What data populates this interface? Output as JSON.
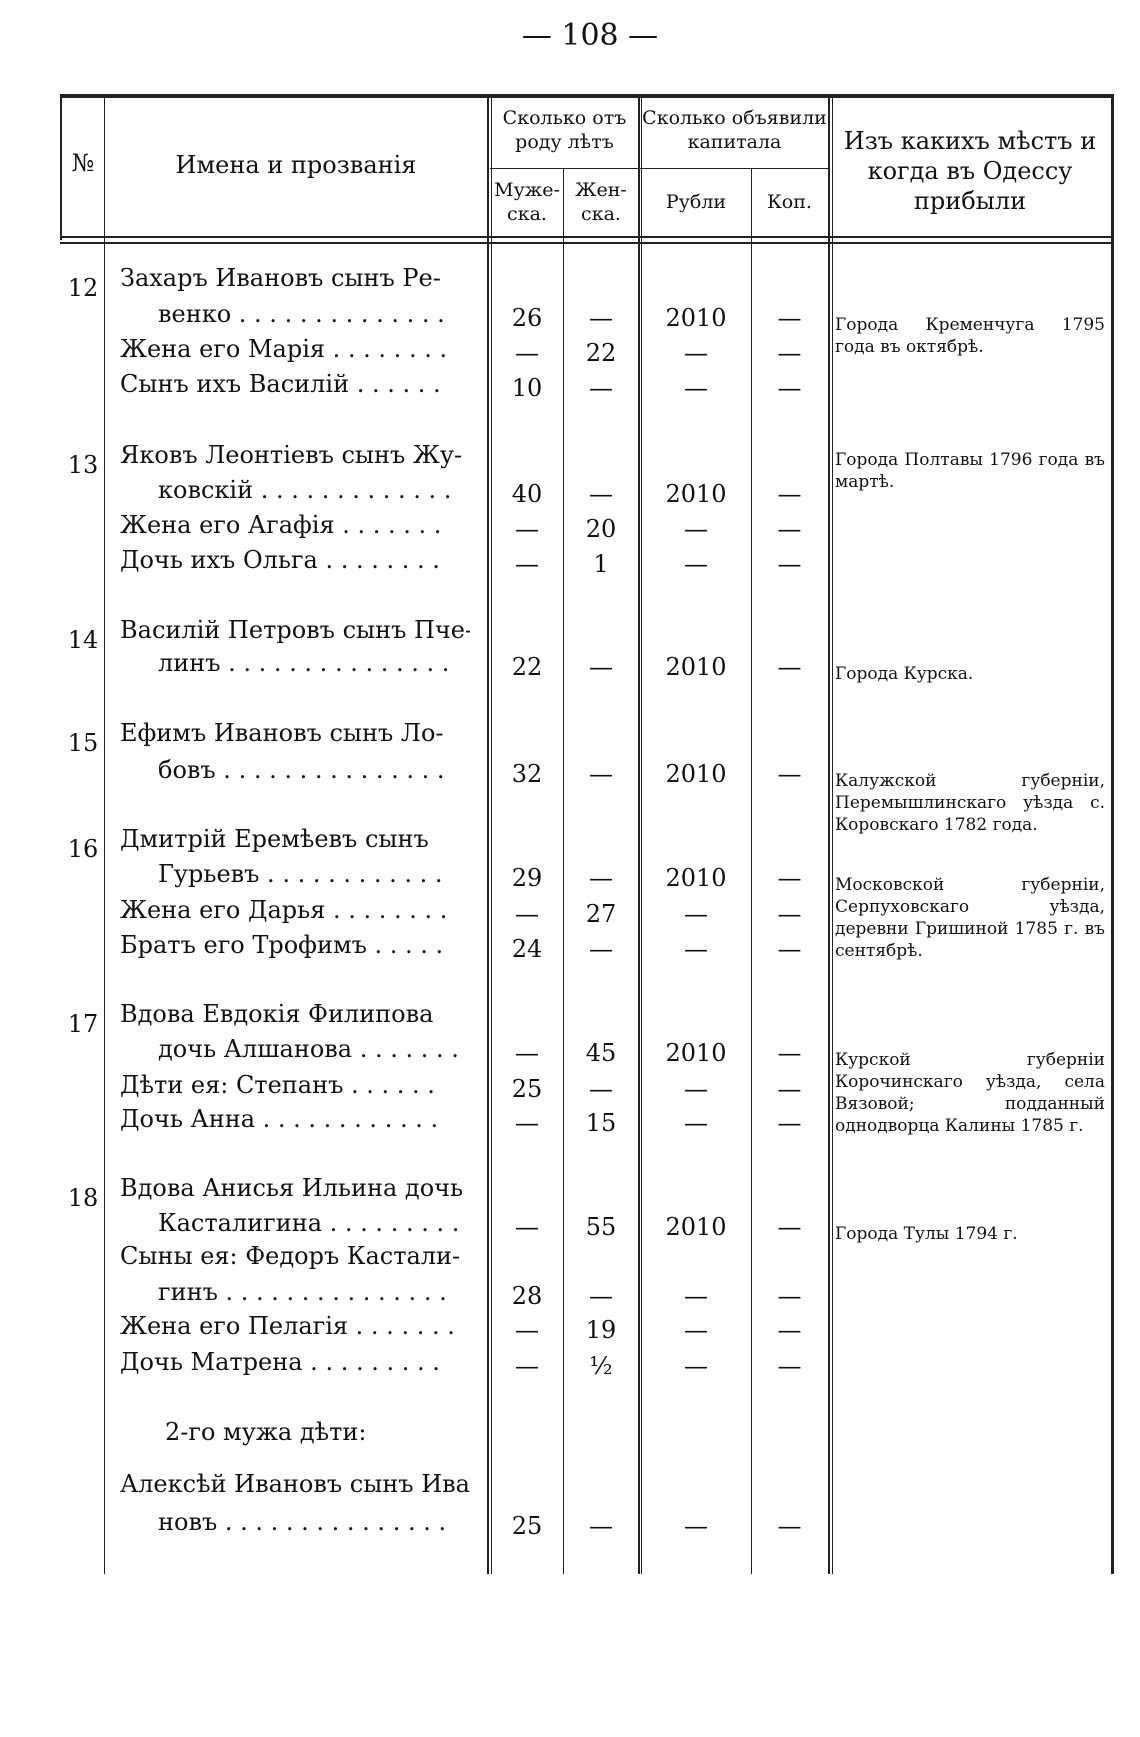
{
  "page_number": "— 108 —",
  "header": {
    "no": "№",
    "names": "Имена и прозванія",
    "age": "Сколько отъ роду лѣтъ",
    "age_male": "Муже-ска.",
    "age_female": "Жен-ска.",
    "capital": "Сколько объявили капитала",
    "rubles": "Рубли",
    "kopecks": "Коп.",
    "origin": "Изъ какихъ мѣстъ и когда въ Одессу прибыли"
  },
  "entries": [
    {
      "no": "12",
      "place": "Города Кременчуга 1795 года въ октябрѣ.",
      "lines": [
        {
          "name": "Захаръ Ивановъ сынъ Ре-",
          "m": "",
          "f": "",
          "r": "",
          "k": ""
        },
        {
          "name": "венко . . . . . . . . . . . . . .",
          "m": "26",
          "f": "—",
          "r": "2010",
          "k": "—",
          "indent": true
        },
        {
          "name": "Жена его Марія . . . . . . . .",
          "m": "—",
          "f": "22",
          "r": "—",
          "k": "—"
        },
        {
          "name": "Сынъ ихъ Василій . . . . . .",
          "m": "10",
          "f": "—",
          "r": "—",
          "k": "—"
        }
      ]
    },
    {
      "no": "13",
      "place": "Города Полтавы 1796 года въ мартѣ.",
      "lines": [
        {
          "name": "Яковъ Леонтіевъ сынъ Жу-",
          "m": "",
          "f": "",
          "r": "",
          "k": ""
        },
        {
          "name": "ковскій . . . . . . . . . . . . .",
          "m": "40",
          "f": "—",
          "r": "2010",
          "k": "—",
          "indent": true
        },
        {
          "name": "Жена его Агафія . . . . . . .",
          "m": "—",
          "f": "20",
          "r": "—",
          "k": "—"
        },
        {
          "name": "Дочь ихъ Ольга . . . . . . . .",
          "m": "—",
          "f": "1",
          "r": "—",
          "k": "—"
        }
      ]
    },
    {
      "no": "14",
      "place": "Города Курска.",
      "lines": [
        {
          "name": "Василій Петровъ сынъ Пче-",
          "m": "",
          "f": "",
          "r": "",
          "k": ""
        },
        {
          "name": "линъ . . . . . . . . . . . . . . .",
          "m": "22",
          "f": "—",
          "r": "2010",
          "k": "—",
          "indent": true
        }
      ]
    },
    {
      "no": "15",
      "place": "Калужской губерніи, Перемышлинскаго уѣзда с. Коровскаго 1782 года.",
      "lines": [
        {
          "name": "Ефимъ Ивановъ сынъ Ло-",
          "m": "",
          "f": "",
          "r": "",
          "k": ""
        },
        {
          "name": "бовъ . . . . . . . . . . . . . . .",
          "m": "32",
          "f": "—",
          "r": "2010",
          "k": "—",
          "indent": true
        }
      ]
    },
    {
      "no": "16",
      "place": "Московской губерніи, Серпуховскаго уѣзда, деревни Гришиной 1785 г. въ сентябрѣ.",
      "lines": [
        {
          "name": "Дмитрій Еремѣевъ сынъ",
          "m": "",
          "f": "",
          "r": "",
          "k": ""
        },
        {
          "name": "Гурьевъ . . . . . . . . . . . .",
          "m": "29",
          "f": "—",
          "r": "2010",
          "k": "—",
          "indent": true
        },
        {
          "name": "Жена его Дарья . . . . . . . .",
          "m": "—",
          "f": "27",
          "r": "—",
          "k": "—"
        },
        {
          "name": "Братъ его Трофимъ . . . . .",
          "m": "24",
          "f": "—",
          "r": "—",
          "k": "—"
        }
      ]
    },
    {
      "no": "17",
      "place": "Курской губерніи Корочинскаго уѣзда, села Вязовой; подданный однодворца Калины 1785 г.",
      "lines": [
        {
          "name": "Вдова Евдокія Филипова",
          "m": "",
          "f": "",
          "r": "",
          "k": ""
        },
        {
          "name": "дочь Алшанова . . . . . . .",
          "m": "—",
          "f": "45",
          "r": "2010",
          "k": "—",
          "indent": true
        },
        {
          "name": "Дѣти ея: Степанъ . . . . . .",
          "m": "25",
          "f": "—",
          "r": "—",
          "k": "—"
        },
        {
          "name": "Дочь Анна . . . . . . . . . . . .",
          "m": "—",
          "f": "15",
          "r": "—",
          "k": "—"
        }
      ]
    },
    {
      "no": "18",
      "place": "Города Тулы 1794 г.",
      "lines": [
        {
          "name": "Вдова Анисья Ильина дочь",
          "m": "",
          "f": "",
          "r": "",
          "k": ""
        },
        {
          "name": "Касталигина . . . . . . . . .",
          "m": "—",
          "f": "55",
          "r": "2010",
          "k": "—",
          "indent": true
        },
        {
          "name": "Сыны ея: Федоръ Кастали-",
          "m": "",
          "f": "",
          "r": "",
          "k": ""
        },
        {
          "name": "гинъ . . . . . . . . . . . . . . .",
          "m": "28",
          "f": "—",
          "r": "—",
          "k": "—",
          "indent": true
        },
        {
          "name": "Жена его Пелагія . . . . . . .",
          "m": "—",
          "f": "19",
          "r": "—",
          "k": "—"
        },
        {
          "name": "Дочь Матрена . . . . . . . . .",
          "m": "—",
          "f": "½",
          "r": "—",
          "k": "—"
        },
        {
          "name": "2-го мужа дѣти:",
          "m": "",
          "f": "",
          "r": "",
          "k": "",
          "sub": true
        },
        {
          "name": "Алексѣй Ивановъ сынъ Ива-",
          "m": "",
          "f": "",
          "r": "",
          "k": ""
        },
        {
          "name": "новъ . . . . . . . . . . . . . . .",
          "m": "25",
          "f": "—",
          "r": "—",
          "k": "—",
          "indent": true
        }
      ]
    }
  ]
}
